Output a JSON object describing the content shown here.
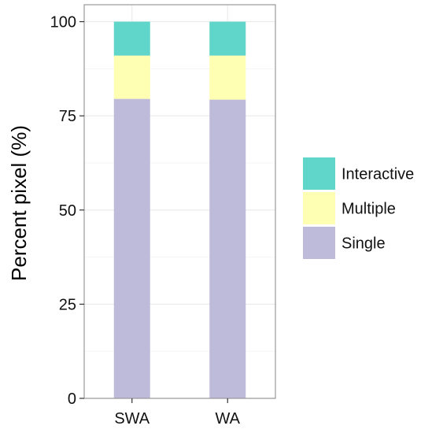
{
  "chart_data": {
    "type": "bar",
    "stacked": true,
    "categories": [
      "SWA",
      "WA"
    ],
    "series": [
      {
        "name": "Single",
        "values": [
          79.5,
          79.3
        ],
        "color": "#bebada"
      },
      {
        "name": "Multiple",
        "values": [
          11.5,
          11.7
        ],
        "color": "#ffffb3"
      },
      {
        "name": "Interactive",
        "values": [
          9.0,
          9.0
        ],
        "color": "#5fd6c9"
      }
    ],
    "title": "",
    "xlabel": "",
    "ylabel": "Percent pixel (%)",
    "ylim": [
      0,
      104.5
    ],
    "yticks": [
      0,
      25,
      50,
      75,
      100
    ],
    "ytick_labels": [
      "0",
      "25",
      "50",
      "75",
      "100"
    ],
    "legend": {
      "position": "right",
      "entries": [
        "Interactive",
        "Multiple",
        "Single"
      ]
    },
    "grid": true
  }
}
